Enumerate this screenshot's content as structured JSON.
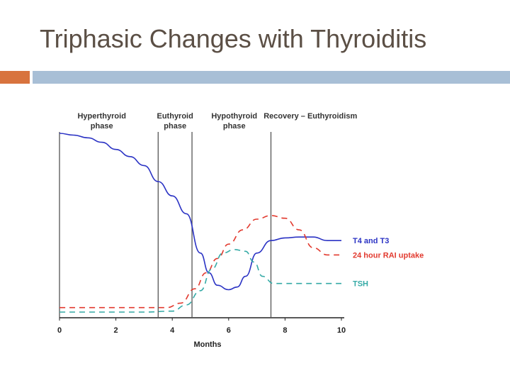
{
  "slide": {
    "title": "Triphasic Changes with Thyroiditis"
  },
  "chart_data": {
    "type": "line",
    "title": "",
    "xlabel": "Months",
    "ylabel": "",
    "xlim": [
      0,
      10
    ],
    "ylim": [
      0,
      100
    ],
    "x_ticks": [
      "0",
      "2",
      "4",
      "6",
      "8",
      "10"
    ],
    "phase_dividers": [
      3.5,
      4.7,
      7.5
    ],
    "phases": [
      {
        "name": "phase-hyperthyroid",
        "line1": "Hyperthyroid",
        "line2": "phase",
        "center": 1.5
      },
      {
        "name": "phase-euthyroid",
        "line1": "Euthyroid",
        "line2": "phase",
        "center": 4.1
      },
      {
        "name": "phase-hypothyroid",
        "line1": "Hypothyroid",
        "line2": "phase",
        "center": 6.2
      },
      {
        "name": "phase-recovery",
        "line1": "Recovery – Euthyroidism",
        "line2": "",
        "center": 8.9
      }
    ],
    "series": [
      {
        "name": "T4 and T3",
        "color": "#2b33c4",
        "dash": "solid",
        "x": [
          0,
          0.5,
          1,
          1.5,
          2,
          2.5,
          3,
          3.5,
          4,
          4.5,
          5,
          5.3,
          5.6,
          6,
          6.3,
          6.6,
          7,
          7.5,
          8,
          8.5,
          9,
          9.5,
          10
        ],
        "y": [
          100,
          99,
          97.5,
          95,
          91,
          87,
          82,
          73,
          65,
          55,
          33,
          22,
          15,
          12.5,
          14,
          20,
          33,
          40,
          41.5,
          42,
          42,
          40,
          40
        ]
      },
      {
        "name": "24 hour RAI uptake",
        "color": "#e23a2f",
        "dash": "dashed",
        "x": [
          0,
          1,
          2,
          3,
          3.8,
          4.3,
          4.8,
          5.2,
          5.6,
          6,
          6.5,
          7,
          7.5,
          8,
          8.5,
          9,
          9.5,
          10
        ],
        "y": [
          2.5,
          2.5,
          2.5,
          2.5,
          2.5,
          5,
          13,
          22,
          30,
          38,
          46,
          52,
          54,
          52.5,
          46,
          36,
          32,
          32
        ]
      },
      {
        "name": "TSH",
        "color": "#35aaa6",
        "dash": "dashed",
        "x": [
          0,
          1,
          2,
          3,
          4,
          4.5,
          5,
          5.4,
          5.8,
          6.2,
          6.6,
          6.9,
          7.2,
          7.6,
          8,
          8.5,
          9,
          9.5,
          10
        ],
        "y": [
          0,
          0,
          0,
          0,
          0.5,
          4,
          12,
          24,
          33,
          35,
          34,
          28,
          20,
          16,
          16,
          16,
          16,
          16,
          16
        ]
      }
    ]
  }
}
